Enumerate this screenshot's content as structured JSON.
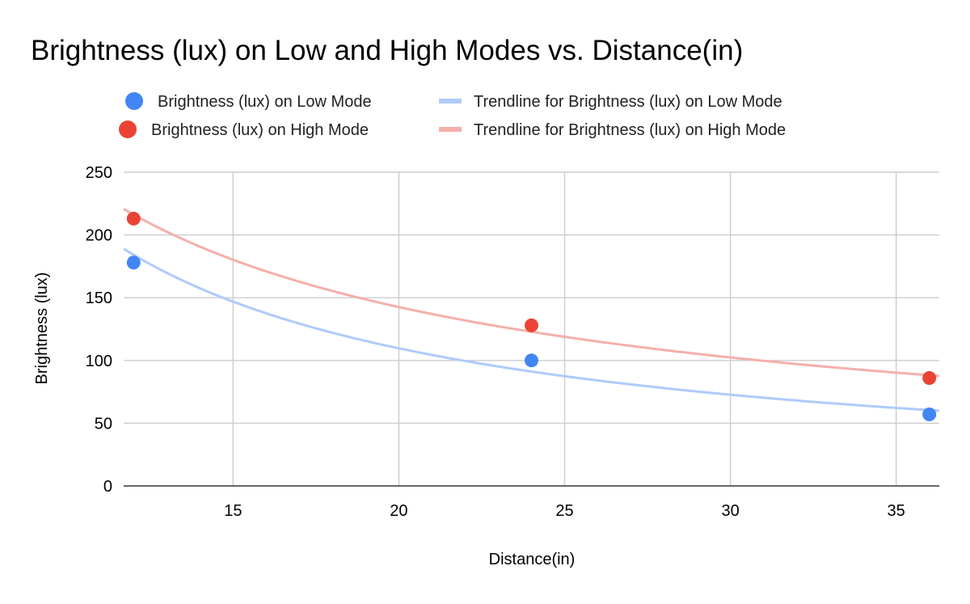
{
  "chart_data": {
    "type": "scatter",
    "title": "Brightness (lux) on Low and High Modes vs. Distance(in)",
    "xlabel": "Distance(in)",
    "ylabel": "Brightness (lux)",
    "xlim": [
      11.7,
      36.3
    ],
    "ylim": [
      0,
      250
    ],
    "xticks": [
      15,
      20,
      25,
      30,
      35
    ],
    "yticks": [
      0,
      50,
      100,
      150,
      200,
      250
    ],
    "grid": true,
    "legend_position": "top",
    "series": [
      {
        "name": "Brightness (lux) on Low Mode",
        "type": "scatter",
        "color": "#4285F4",
        "x": [
          12,
          24,
          36
        ],
        "y": [
          178,
          100,
          57
        ]
      },
      {
        "name": "Brightness (lux) on High Mode",
        "type": "scatter",
        "color": "#EA4335",
        "x": [
          12,
          24,
          36
        ],
        "y": [
          213,
          128,
          86
        ]
      }
    ],
    "trendlines": [
      {
        "name": "Trendline for Brightness (lux) on Low Mode",
        "series": "Brightness (lux) on Low Mode",
        "model": "power",
        "color": "#AECBFA"
      },
      {
        "name": "Trendline for Brightness (lux) on High Mode",
        "series": "Brightness (lux) on High Mode",
        "model": "power",
        "color": "#F4B0A9"
      }
    ]
  }
}
